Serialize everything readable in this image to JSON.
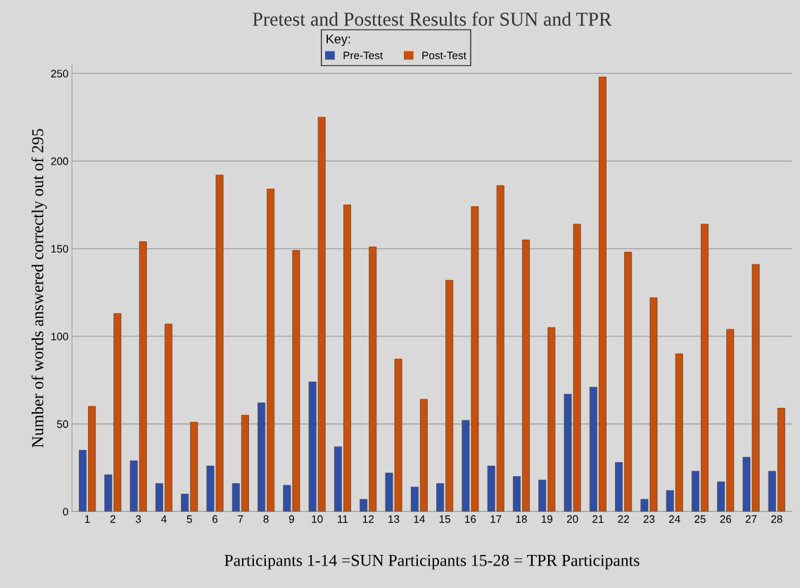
{
  "chart_data": {
    "type": "bar",
    "title": "Pretest and Posttest Results for SUN and TPR",
    "xlabel": "Participants 1-14 =SUN Participants 15-28 = TPR Participants",
    "ylabel": "Number of words answered correctly out of 295",
    "legend_title": "Key:",
    "legend": "top",
    "grid": "y",
    "categories": [
      "1",
      "2",
      "3",
      "4",
      "5",
      "6",
      "7",
      "8",
      "9",
      "10",
      "11",
      "12",
      "13",
      "14",
      "15",
      "16",
      "17",
      "18",
      "19",
      "20",
      "21",
      "22",
      "23",
      "24",
      "25",
      "26",
      "27",
      "28"
    ],
    "series": [
      {
        "name": "Pre-Test",
        "color": "#2e4fa8",
        "values": [
          35,
          21,
          29,
          16,
          10,
          26,
          16,
          62,
          15,
          74,
          37,
          7,
          22,
          14,
          16,
          52,
          26,
          20,
          18,
          67,
          71,
          28,
          7,
          12,
          23,
          17,
          31,
          23
        ]
      },
      {
        "name": "Post-Test",
        "color": "#c8500e",
        "values": [
          60,
          113,
          154,
          107,
          51,
          192,
          55,
          184,
          149,
          225,
          175,
          151,
          87,
          64,
          132,
          174,
          186,
          155,
          105,
          164,
          248,
          148,
          122,
          90,
          164,
          104,
          141,
          59
        ]
      }
    ],
    "ylim": [
      0,
      255
    ],
    "yticks": [
      0,
      50,
      100,
      150,
      200,
      250
    ]
  }
}
